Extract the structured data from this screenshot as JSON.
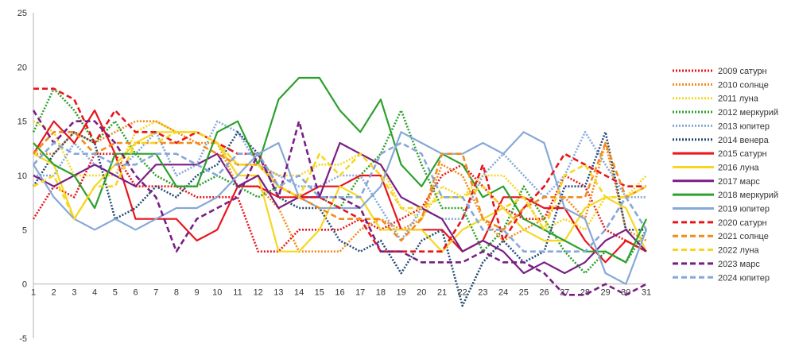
{
  "chart_data": {
    "type": "line",
    "title": "",
    "xlabel": "",
    "ylabel": "",
    "x": [
      1,
      2,
      3,
      4,
      5,
      6,
      7,
      8,
      9,
      10,
      11,
      12,
      13,
      14,
      15,
      16,
      17,
      18,
      19,
      20,
      21,
      22,
      23,
      24,
      25,
      26,
      27,
      28,
      29,
      30,
      31
    ],
    "ylim": [
      -5,
      25
    ],
    "yticks": [
      -5,
      0,
      5,
      10,
      15,
      20,
      25
    ],
    "grid": false,
    "legend_position": "right",
    "series": [
      {
        "name": "2009 сатурн",
        "color": "#e8151b",
        "dash": "dot",
        "values": [
          6,
          9,
          8,
          12,
          12,
          9,
          9,
          9,
          8,
          8,
          8,
          3,
          3,
          5,
          5,
          5,
          6,
          5,
          6,
          7,
          10,
          11,
          9,
          7,
          6,
          6,
          10,
          9,
          5,
          4,
          3
        ]
      },
      {
        "name": "2010 солнце",
        "color": "#f28b1c",
        "dash": "dot",
        "values": [
          12,
          12,
          14,
          13,
          14,
          15,
          15,
          14,
          13,
          13,
          9,
          9,
          7,
          3,
          3,
          3,
          5,
          6,
          5,
          6,
          11,
          10,
          6,
          4,
          5,
          6,
          8,
          6,
          13,
          5,
          4
        ]
      },
      {
        "name": "2011 луна",
        "color": "#f7d720",
        "dash": "dot",
        "values": [
          15,
          14,
          10,
          10,
          10,
          14,
          15,
          14,
          14,
          13,
          11,
          11,
          10,
          10,
          11,
          11,
          12,
          11,
          7,
          6,
          9,
          8,
          10,
          10,
          8,
          5,
          6,
          5,
          8,
          8,
          10
        ]
      },
      {
        "name": "2012 меркурий",
        "color": "#2ca02c",
        "dash": "dot",
        "values": [
          14,
          18,
          16,
          13,
          15,
          12,
          10,
          9,
          9,
          10,
          9,
          8,
          9,
          8,
          8,
          7,
          10,
          12,
          16,
          11,
          7,
          7,
          3,
          5,
          9,
          6,
          3,
          1,
          3,
          2,
          5
        ]
      },
      {
        "name": "2013 юпитер",
        "color": "#86a8d8",
        "dash": "dot",
        "values": [
          10,
          10,
          13,
          11,
          10,
          12,
          14,
          10,
          11,
          15,
          14,
          11,
          10,
          9,
          9,
          10,
          10,
          7,
          4,
          7,
          6,
          6,
          10,
          12,
          10,
          8,
          10,
          14,
          11,
          8,
          8
        ]
      },
      {
        "name": "2014 венера",
        "color": "#244a75",
        "dash": "dot",
        "values": [
          9,
          12,
          14,
          13,
          6,
          7,
          9,
          8,
          10,
          11,
          14,
          12,
          8,
          7,
          7,
          4,
          3,
          4,
          1,
          4,
          5,
          -2,
          2,
          4,
          2,
          3,
          9,
          9,
          14,
          5,
          5
        ]
      },
      {
        "name": "2015 сатурн",
        "color": "#e8151b",
        "dash": "solid",
        "values": [
          12,
          15,
          13,
          16,
          12,
          6,
          6,
          6,
          4,
          5,
          9,
          9,
          8,
          8,
          9,
          9,
          10,
          10,
          5,
          5,
          5,
          3,
          4,
          8,
          8,
          7,
          7,
          4,
          2,
          4,
          3
        ]
      },
      {
        "name": "2016 луна",
        "color": "#f7d720",
        "dash": "solid",
        "values": [
          12,
          11,
          6,
          9,
          11,
          13,
          14,
          14,
          14,
          13,
          10,
          10,
          3,
          3,
          5,
          9,
          8,
          5,
          5,
          5,
          3,
          5,
          6,
          7,
          5,
          4,
          4,
          7,
          8,
          7,
          3
        ]
      },
      {
        "name": "2017 марс",
        "color": "#7a1e84",
        "dash": "solid",
        "values": [
          10,
          9,
          10,
          11,
          10,
          9,
          11,
          11,
          11,
          12,
          9,
          10,
          7,
          8,
          8,
          13,
          12,
          11,
          8,
          7,
          6,
          3,
          4,
          3,
          1,
          2,
          1,
          2,
          4,
          5,
          3
        ]
      },
      {
        "name": "2018 меркурий",
        "color": "#2ca02c",
        "dash": "solid",
        "values": [
          13,
          11,
          10,
          7,
          12,
          12,
          12,
          9,
          9,
          14,
          15,
          11,
          17,
          19,
          19,
          16,
          14,
          17,
          11,
          9,
          12,
          11,
          8,
          9,
          6,
          5,
          4,
          3,
          3,
          2,
          6
        ]
      },
      {
        "name": "2019 юпитер",
        "color": "#86a8d8",
        "dash": "solid",
        "values": [
          11,
          8,
          6,
          5,
          6,
          5,
          6,
          7,
          7,
          8,
          10,
          12,
          13,
          8,
          7,
          7,
          7,
          9,
          14,
          13,
          12,
          12,
          13,
          12,
          14,
          13,
          7,
          6,
          1,
          0,
          5
        ]
      },
      {
        "name": "2020 сатурн",
        "color": "#e8151b",
        "dash": "dash",
        "values": [
          18,
          18,
          17,
          13,
          16,
          14,
          14,
          13,
          14,
          13,
          12,
          12,
          9,
          8,
          8,
          7,
          6,
          3,
          3,
          3,
          3,
          6,
          11,
          4,
          7,
          9,
          12,
          11,
          10,
          9,
          9
        ]
      },
      {
        "name": "2021 солнце",
        "color": "#f28b1c",
        "dash": "dash",
        "values": [
          12,
          14,
          14,
          12,
          13,
          13,
          13,
          13,
          13,
          12,
          11,
          11,
          9,
          8,
          7,
          6,
          6,
          6,
          4,
          6,
          12,
          12,
          6,
          5,
          7,
          8,
          8,
          8,
          13,
          8,
          9
        ]
      },
      {
        "name": "2022 луна",
        "color": "#f7d720",
        "dash": "dash",
        "values": [
          9,
          10,
          6,
          9,
          9,
          13,
          13,
          14,
          14,
          13,
          11,
          11,
          9,
          8,
          12,
          10,
          12,
          10,
          7,
          7,
          8,
          8,
          9,
          7,
          8,
          5,
          10,
          11,
          8,
          8,
          9
        ]
      },
      {
        "name": "2023 марс",
        "color": "#7a1e84",
        "dash": "dash",
        "values": [
          16,
          13,
          15,
          15,
          13,
          10,
          8,
          3,
          6,
          7,
          8,
          12,
          8,
          15,
          8,
          8,
          7,
          3,
          3,
          2,
          2,
          2,
          3,
          2,
          2,
          1,
          -1,
          -1,
          0,
          -1,
          0
        ]
      },
      {
        "name": "2024 юпитер",
        "color": "#86a8d8",
        "dash": "dash",
        "values": [
          11,
          13,
          12,
          12,
          11,
          11,
          12,
          12,
          11,
          10,
          12,
          12,
          9,
          10,
          8,
          8,
          8,
          12,
          13,
          12,
          8,
          8,
          5,
          5,
          3,
          3,
          3,
          3,
          5,
          8,
          5
        ]
      }
    ]
  }
}
